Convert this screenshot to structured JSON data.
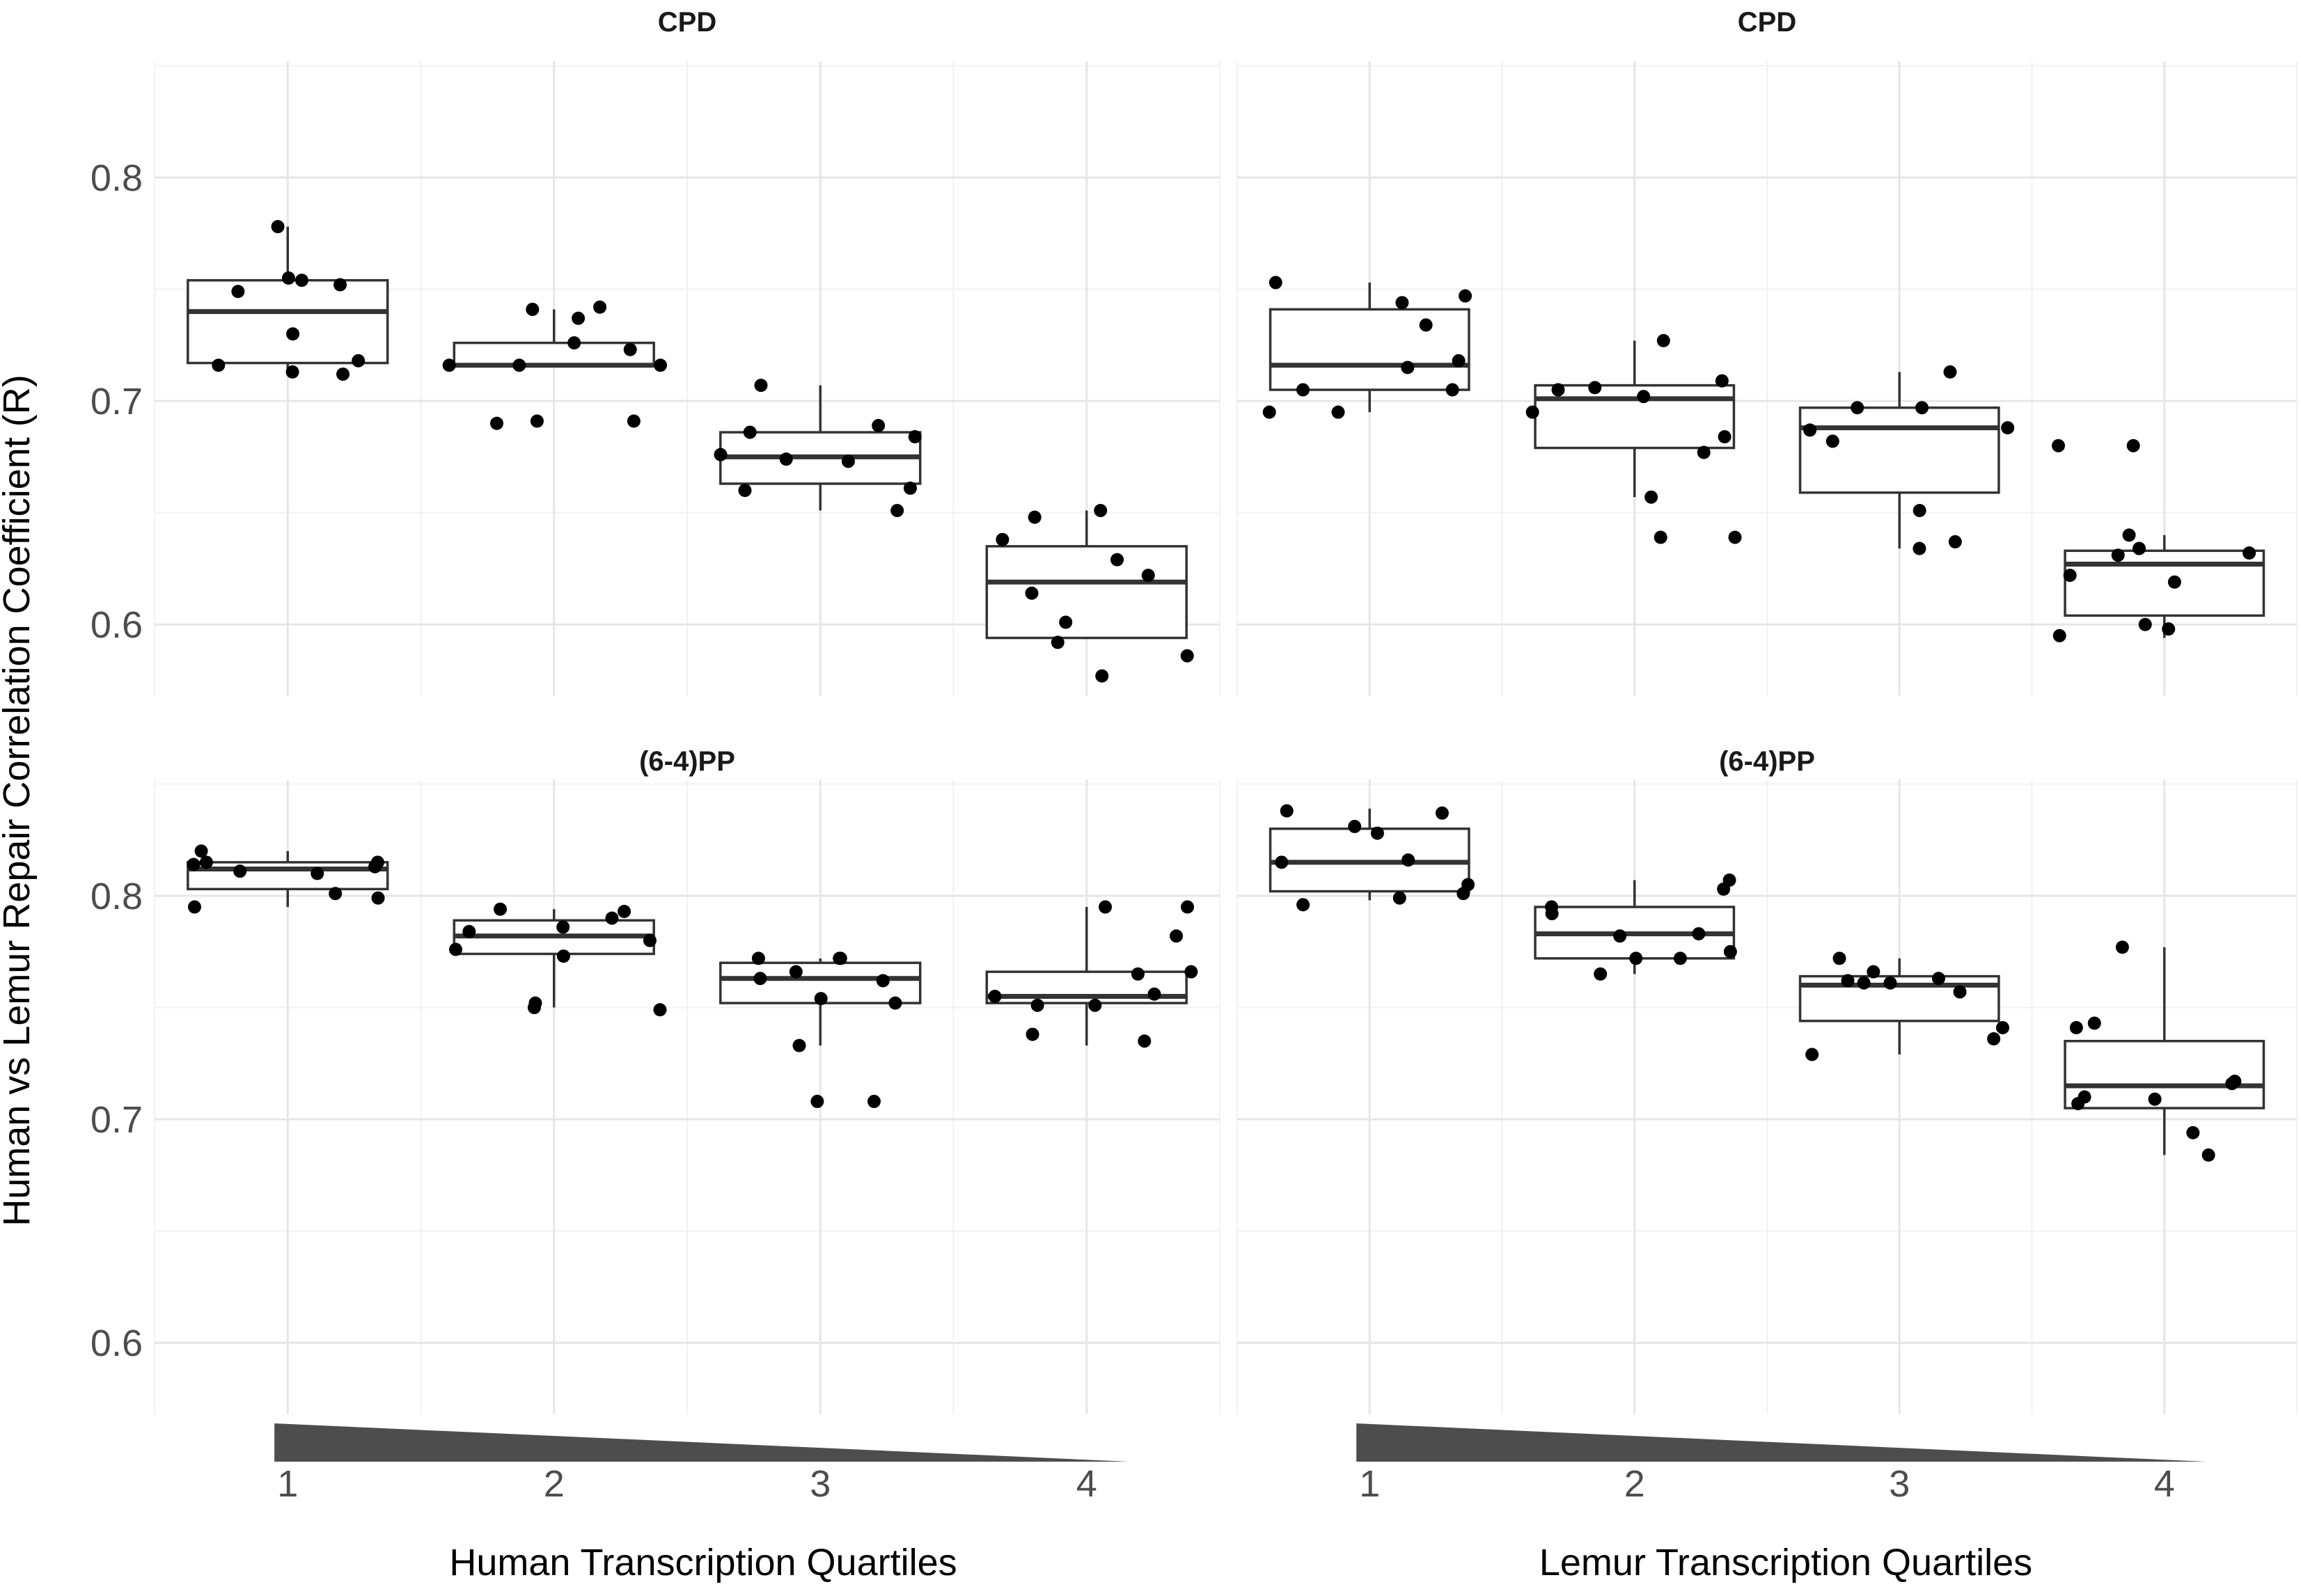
{
  "y_axis_title": "Human vs Lemur Repair Correlation Coefficient (R)",
  "x_axis_titles": [
    "Human Transcription Quartiles",
    "Lemur Transcription Quartiles"
  ],
  "colors": {
    "box_outline": "#333333",
    "points": "#000000",
    "wedge": "#4d4d4d",
    "grid": "#e6e6e6"
  },
  "chart_data": [
    {
      "type": "box",
      "title": "CPD",
      "xlabel": "Human Transcription Quartiles",
      "ylabel": "Human vs Lemur Repair Correlation Coefficient (R)",
      "categories": [
        "1",
        "2",
        "3",
        "4"
      ],
      "ylim": [
        0.568,
        0.852
      ],
      "yticks": [
        0.6,
        0.7,
        0.8
      ],
      "grid": true,
      "boxes": [
        {
          "q1": 0.717,
          "median": 0.74,
          "q3": 0.754,
          "whisker_low": 0.713,
          "whisker_high": 0.778
        },
        {
          "q1": 0.716,
          "median": 0.716,
          "q3": 0.726,
          "whisker_low": 0.716,
          "whisker_high": 0.741
        },
        {
          "q1": 0.663,
          "median": 0.675,
          "q3": 0.686,
          "whisker_low": 0.651,
          "whisker_high": 0.707
        },
        {
          "q1": 0.594,
          "median": 0.619,
          "q3": 0.635,
          "whisker_low": 0.594,
          "whisker_high": 0.651
        }
      ],
      "points": [
        {
          "x": 1,
          "y": 0.716
        },
        {
          "x": 1,
          "y": 0.752
        },
        {
          "x": 1,
          "y": 0.754
        },
        {
          "x": 1,
          "y": 0.778
        },
        {
          "x": 1,
          "y": 0.749
        },
        {
          "x": 1,
          "y": 0.718
        },
        {
          "x": 1,
          "y": 0.712
        },
        {
          "x": 1,
          "y": 0.755
        },
        {
          "x": 1,
          "y": 0.73
        },
        {
          "x": 1,
          "y": 0.713
        },
        {
          "x": 2,
          "y": 0.716
        },
        {
          "x": 2,
          "y": 0.726
        },
        {
          "x": 2,
          "y": 0.737
        },
        {
          "x": 2,
          "y": 0.741
        },
        {
          "x": 2,
          "y": 0.723
        },
        {
          "x": 2,
          "y": 0.716
        },
        {
          "x": 2,
          "y": 0.691
        },
        {
          "x": 2,
          "y": 0.69
        },
        {
          "x": 2,
          "y": 0.716
        },
        {
          "x": 2,
          "y": 0.742
        },
        {
          "x": 2,
          "y": 0.691
        },
        {
          "x": 3,
          "y": 0.651
        },
        {
          "x": 3,
          "y": 0.676
        },
        {
          "x": 3,
          "y": 0.673
        },
        {
          "x": 3,
          "y": 0.684
        },
        {
          "x": 3,
          "y": 0.707
        },
        {
          "x": 3,
          "y": 0.689
        },
        {
          "x": 3,
          "y": 0.66
        },
        {
          "x": 3,
          "y": 0.661
        },
        {
          "x": 3,
          "y": 0.686
        },
        {
          "x": 3,
          "y": 0.674
        },
        {
          "x": 4,
          "y": 0.651
        },
        {
          "x": 4,
          "y": 0.592
        },
        {
          "x": 4,
          "y": 0.601
        },
        {
          "x": 4,
          "y": 0.577
        },
        {
          "x": 4,
          "y": 0.638
        },
        {
          "x": 4,
          "y": 0.629
        },
        {
          "x": 4,
          "y": 0.586
        },
        {
          "x": 4,
          "y": 0.614
        },
        {
          "x": 4,
          "y": 0.648
        },
        {
          "x": 4,
          "y": 0.622
        }
      ]
    },
    {
      "type": "box",
      "title": "CPD",
      "xlabel": "Lemur Transcription Quartiles",
      "categories": [
        "1",
        "2",
        "3",
        "4"
      ],
      "ylim": [
        0.568,
        0.852
      ],
      "yticks": [
        0.6,
        0.7,
        0.8
      ],
      "grid": true,
      "boxes": [
        {
          "q1": 0.705,
          "median": 0.716,
          "q3": 0.741,
          "whisker_low": 0.695,
          "whisker_high": 0.753
        },
        {
          "q1": 0.679,
          "median": 0.701,
          "q3": 0.707,
          "whisker_low": 0.657,
          "whisker_high": 0.727
        },
        {
          "q1": 0.659,
          "median": 0.688,
          "q3": 0.697,
          "whisker_low": 0.634,
          "whisker_high": 0.713
        },
        {
          "q1": 0.604,
          "median": 0.627,
          "q3": 0.633,
          "whisker_low": 0.594,
          "whisker_high": 0.64
        }
      ],
      "points": [
        {
          "x": 1,
          "y": 0.695
        },
        {
          "x": 1,
          "y": 0.695
        },
        {
          "x": 1,
          "y": 0.705
        },
        {
          "x": 1,
          "y": 0.705
        },
        {
          "x": 1,
          "y": 0.718
        },
        {
          "x": 1,
          "y": 0.744
        },
        {
          "x": 1,
          "y": 0.734
        },
        {
          "x": 1,
          "y": 0.753
        },
        {
          "x": 1,
          "y": 0.715
        },
        {
          "x": 1,
          "y": 0.747
        },
        {
          "x": 2,
          "y": 0.657
        },
        {
          "x": 2,
          "y": 0.702
        },
        {
          "x": 2,
          "y": 0.727
        },
        {
          "x": 2,
          "y": 0.639
        },
        {
          "x": 2,
          "y": 0.639
        },
        {
          "x": 2,
          "y": 0.684
        },
        {
          "x": 2,
          "y": 0.695
        },
        {
          "x": 2,
          "y": 0.677
        },
        {
          "x": 2,
          "y": 0.709
        },
        {
          "x": 2,
          "y": 0.706
        },
        {
          "x": 2,
          "y": 0.705
        },
        {
          "x": 3,
          "y": 0.688
        },
        {
          "x": 3,
          "y": 0.651
        },
        {
          "x": 3,
          "y": 0.713
        },
        {
          "x": 3,
          "y": 0.697
        },
        {
          "x": 3,
          "y": 0.637
        },
        {
          "x": 3,
          "y": 0.634
        },
        {
          "x": 3,
          "y": 0.697
        },
        {
          "x": 3,
          "y": 0.682
        },
        {
          "x": 3,
          "y": 0.687
        },
        {
          "x": 4,
          "y": 0.634
        },
        {
          "x": 4,
          "y": 0.632
        },
        {
          "x": 4,
          "y": 0.6
        },
        {
          "x": 4,
          "y": 0.631
        },
        {
          "x": 4,
          "y": 0.68
        },
        {
          "x": 4,
          "y": 0.595
        },
        {
          "x": 4,
          "y": 0.619
        },
        {
          "x": 4,
          "y": 0.598
        },
        {
          "x": 4,
          "y": 0.68
        },
        {
          "x": 4,
          "y": 0.64
        },
        {
          "x": 4,
          "y": 0.622
        }
      ]
    },
    {
      "type": "box",
      "title": "(6-4)PP",
      "xlabel": "Human Transcription Quartiles",
      "categories": [
        "1",
        "2",
        "3",
        "4"
      ],
      "ylim": [
        0.568,
        0.852
      ],
      "yticks": [
        0.6,
        0.7,
        0.8
      ],
      "grid": true,
      "boxes": [
        {
          "q1": 0.803,
          "median": 0.812,
          "q3": 0.815,
          "whisker_low": 0.795,
          "whisker_high": 0.82
        },
        {
          "q1": 0.774,
          "median": 0.782,
          "q3": 0.789,
          "whisker_low": 0.75,
          "whisker_high": 0.794
        },
        {
          "q1": 0.752,
          "median": 0.763,
          "q3": 0.77,
          "whisker_low": 0.733,
          "whisker_high": 0.772
        },
        {
          "q1": 0.752,
          "median": 0.755,
          "q3": 0.766,
          "whisker_low": 0.733,
          "whisker_high": 0.795
        }
      ],
      "points": [
        {
          "x": 1,
          "y": 0.815
        },
        {
          "x": 1,
          "y": 0.801
        },
        {
          "x": 1,
          "y": 0.82
        },
        {
          "x": 1,
          "y": 0.811
        },
        {
          "x": 1,
          "y": 0.813
        },
        {
          "x": 1,
          "y": 0.81
        },
        {
          "x": 1,
          "y": 0.799
        },
        {
          "x": 1,
          "y": 0.795
        },
        {
          "x": 1,
          "y": 0.815
        },
        {
          "x": 1,
          "y": 0.814
        },
        {
          "x": 2,
          "y": 0.776
        },
        {
          "x": 2,
          "y": 0.794
        },
        {
          "x": 2,
          "y": 0.786
        },
        {
          "x": 2,
          "y": 0.773
        },
        {
          "x": 2,
          "y": 0.752
        },
        {
          "x": 2,
          "y": 0.75
        },
        {
          "x": 2,
          "y": 0.78
        },
        {
          "x": 2,
          "y": 0.784
        },
        {
          "x": 2,
          "y": 0.793
        },
        {
          "x": 2,
          "y": 0.79
        },
        {
          "x": 2,
          "y": 0.749
        },
        {
          "x": 3,
          "y": 0.762
        },
        {
          "x": 3,
          "y": 0.752
        },
        {
          "x": 3,
          "y": 0.772
        },
        {
          "x": 3,
          "y": 0.766
        },
        {
          "x": 3,
          "y": 0.754
        },
        {
          "x": 3,
          "y": 0.708
        },
        {
          "x": 3,
          "y": 0.708
        },
        {
          "x": 3,
          "y": 0.763
        },
        {
          "x": 3,
          "y": 0.772
        },
        {
          "x": 3,
          "y": 0.733
        },
        {
          "x": 3,
          "y": 0.772
        },
        {
          "x": 4,
          "y": 0.756
        },
        {
          "x": 4,
          "y": 0.751
        },
        {
          "x": 4,
          "y": 0.735
        },
        {
          "x": 4,
          "y": 0.738
        },
        {
          "x": 4,
          "y": 0.751
        },
        {
          "x": 4,
          "y": 0.795
        },
        {
          "x": 4,
          "y": 0.795
        },
        {
          "x": 4,
          "y": 0.782
        },
        {
          "x": 4,
          "y": 0.765
        },
        {
          "x": 4,
          "y": 0.755
        },
        {
          "x": 4,
          "y": 0.766
        }
      ]
    },
    {
      "type": "box",
      "title": "(6-4)PP",
      "xlabel": "Lemur Transcription Quartiles",
      "categories": [
        "1",
        "2",
        "3",
        "4"
      ],
      "ylim": [
        0.568,
        0.852
      ],
      "yticks": [
        0.6,
        0.7,
        0.8
      ],
      "grid": true,
      "boxes": [
        {
          "q1": 0.802,
          "median": 0.815,
          "q3": 0.83,
          "whisker_low": 0.798,
          "whisker_high": 0.839
        },
        {
          "q1": 0.772,
          "median": 0.783,
          "q3": 0.795,
          "whisker_low": 0.765,
          "whisker_high": 0.807
        },
        {
          "q1": 0.744,
          "median": 0.76,
          "q3": 0.764,
          "whisker_low": 0.729,
          "whisker_high": 0.772
        },
        {
          "q1": 0.705,
          "median": 0.715,
          "q3": 0.735,
          "whisker_low": 0.684,
          "whisker_high": 0.777
        }
      ],
      "points": [
        {
          "x": 1,
          "y": 0.828
        },
        {
          "x": 1,
          "y": 0.831
        },
        {
          "x": 1,
          "y": 0.837
        },
        {
          "x": 1,
          "y": 0.816
        },
        {
          "x": 1,
          "y": 0.815
        },
        {
          "x": 1,
          "y": 0.805
        },
        {
          "x": 1,
          "y": 0.801
        },
        {
          "x": 1,
          "y": 0.799
        },
        {
          "x": 1,
          "y": 0.838
        },
        {
          "x": 1,
          "y": 0.796
        },
        {
          "x": 2,
          "y": 0.792
        },
        {
          "x": 2,
          "y": 0.772
        },
        {
          "x": 2,
          "y": 0.803
        },
        {
          "x": 2,
          "y": 0.807
        },
        {
          "x": 2,
          "y": 0.765
        },
        {
          "x": 2,
          "y": 0.783
        },
        {
          "x": 2,
          "y": 0.775
        },
        {
          "x": 2,
          "y": 0.795
        },
        {
          "x": 2,
          "y": 0.772
        },
        {
          "x": 2,
          "y": 0.782
        },
        {
          "x": 3,
          "y": 0.729
        },
        {
          "x": 3,
          "y": 0.761
        },
        {
          "x": 3,
          "y": 0.766
        },
        {
          "x": 3,
          "y": 0.772
        },
        {
          "x": 3,
          "y": 0.736
        },
        {
          "x": 3,
          "y": 0.757
        },
        {
          "x": 3,
          "y": 0.741
        },
        {
          "x": 3,
          "y": 0.762
        },
        {
          "x": 3,
          "y": 0.763
        },
        {
          "x": 3,
          "y": 0.761
        },
        {
          "x": 4,
          "y": 0.743
        },
        {
          "x": 4,
          "y": 0.716
        },
        {
          "x": 4,
          "y": 0.694
        },
        {
          "x": 4,
          "y": 0.707
        },
        {
          "x": 4,
          "y": 0.71
        },
        {
          "x": 4,
          "y": 0.709
        },
        {
          "x": 4,
          "y": 0.741
        },
        {
          "x": 4,
          "y": 0.684
        },
        {
          "x": 4,
          "y": 0.717
        },
        {
          "x": 4,
          "y": 0.777
        }
      ]
    }
  ]
}
